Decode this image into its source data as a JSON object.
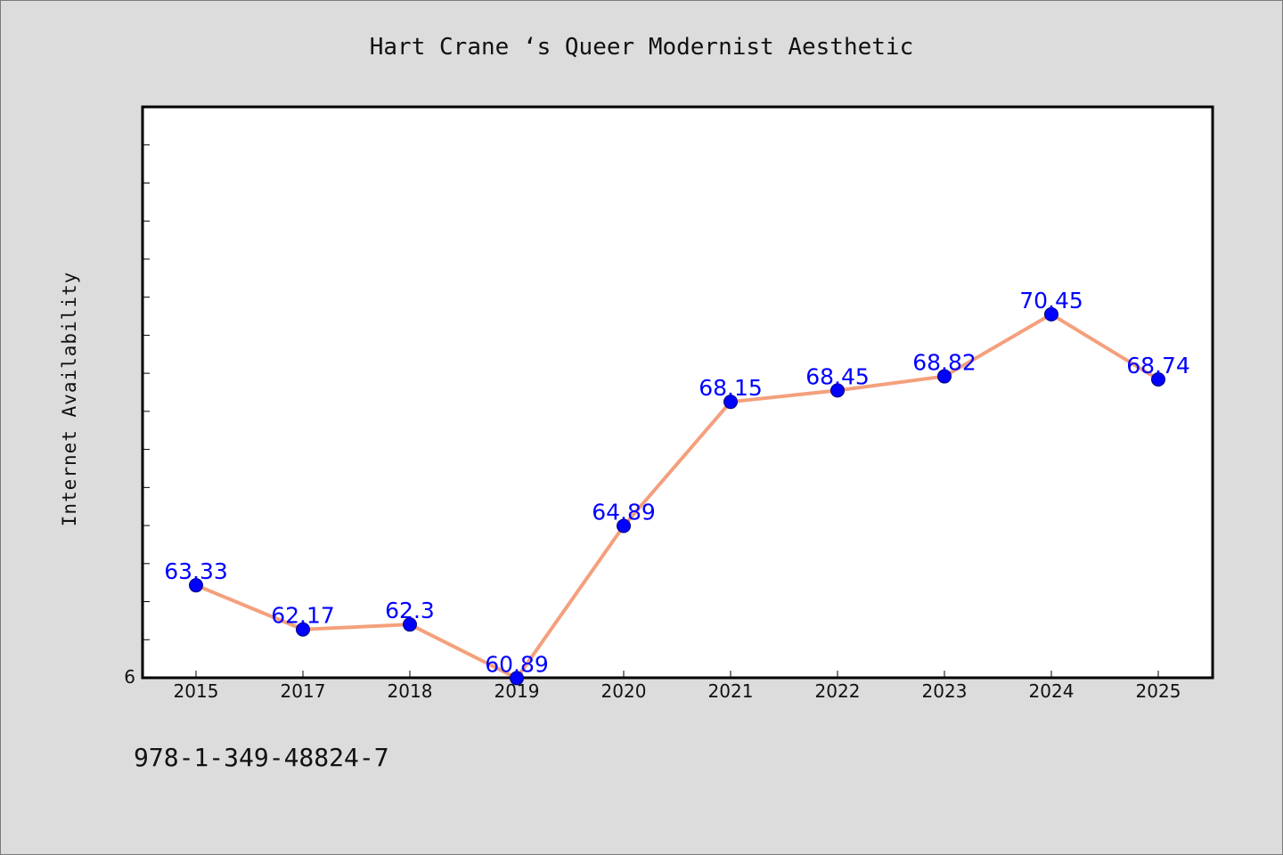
{
  "chart_data": {
    "type": "line",
    "title": "Hart Crane ‘s Queer Modernist Aesthetic",
    "xlabel": "",
    "ylabel": "Internet Availability",
    "categories": [
      "2015",
      "2017",
      "2018",
      "2019",
      "2020",
      "2021",
      "2022",
      "2023",
      "2024",
      "2025"
    ],
    "values": [
      63.33,
      62.17,
      62.3,
      60.89,
      64.89,
      68.15,
      68.45,
      68.82,
      70.45,
      68.74
    ],
    "data_labels": [
      "63.33",
      "62.17",
      "62.3",
      "60.89",
      "64.89",
      "68.15",
      "68.45",
      "68.82",
      "70.45",
      "68.74"
    ],
    "ylim": [
      60.9,
      75.9
    ],
    "y_tick_labels": [
      "6"
    ],
    "grid": false,
    "colors": {
      "line": "#f4a07c",
      "marker": "#0000ff",
      "label": "#0000ff",
      "plot_bg": "#ffffff",
      "page_bg": "#dcdcdc"
    }
  },
  "footer": {
    "code": "978-1-349-48824-7"
  }
}
